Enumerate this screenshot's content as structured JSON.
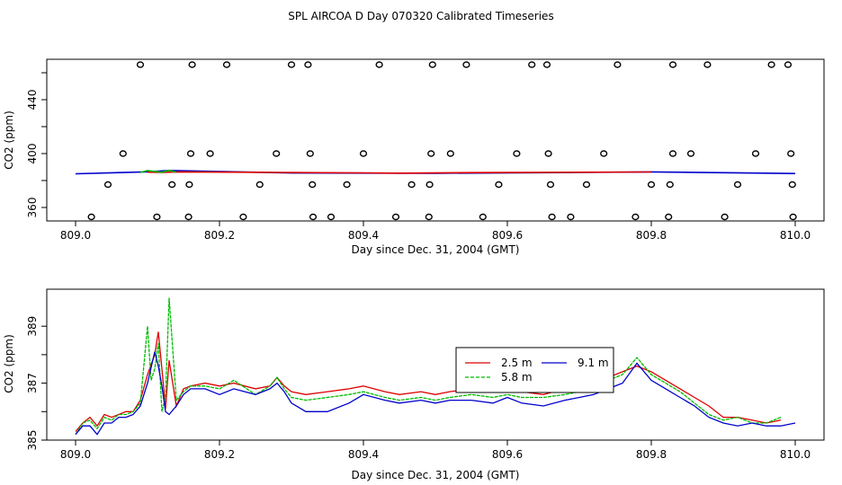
{
  "title": "SPL AIRCOA D  Day 070320  Calibrated Timeseries",
  "colors": {
    "red": "#dd0000",
    "green": "#00bb00",
    "blue": "#0000cc",
    "axis": "#000000"
  },
  "chart_data": [
    {
      "type": "scatter",
      "title": "",
      "xlabel": "Day since Dec. 31, 2004 (GMT)",
      "ylabel": "CO2 (ppm)",
      "xlim": [
        809.0,
        810.0
      ],
      "ylim": [
        350,
        470
      ],
      "x_ticks": [
        809.0,
        809.2,
        809.4,
        809.6,
        809.8,
        810.0
      ],
      "x_tick_labels": [
        "809.0",
        "809.2",
        "809.4",
        "809.6",
        "809.8",
        "810.0"
      ],
      "y_ticks": [
        360,
        380,
        400,
        420,
        440,
        460
      ],
      "y_tick_labels": [
        "360",
        "",
        "400",
        "",
        "440",
        ""
      ],
      "points": {
        "x": [
          809.09,
          809.162,
          809.21,
          809.3,
          809.323,
          809.422,
          809.496,
          809.543,
          809.634,
          809.655,
          809.753,
          809.83,
          809.878,
          809.967,
          809.99,
          809.066,
          809.16,
          809.187,
          809.279,
          809.326,
          809.4,
          809.494,
          809.521,
          809.613,
          809.657,
          809.734,
          809.83,
          809.855,
          809.945,
          809.994,
          809.045,
          809.134,
          809.158,
          809.256,
          809.329,
          809.377,
          809.467,
          809.492,
          809.588,
          809.66,
          809.71,
          809.8,
          809.826,
          809.92,
          809.996,
          809.022,
          809.113,
          809.157,
          809.233,
          809.33,
          809.355,
          809.445,
          809.491,
          809.566,
          809.662,
          809.688,
          809.778,
          809.824,
          809.902,
          809.997
        ],
        "y": [
          466,
          466,
          466,
          466,
          466,
          466,
          466,
          466,
          466,
          466,
          466,
          466,
          466,
          466,
          466,
          400,
          400,
          400,
          400,
          400,
          400,
          400,
          400,
          400,
          400,
          400,
          400,
          400,
          400,
          400,
          377,
          377,
          377,
          377,
          377,
          377,
          377,
          377,
          377,
          377,
          377,
          377,
          377,
          377,
          377,
          353,
          353,
          353,
          353,
          353,
          353,
          353,
          353,
          353,
          353,
          353,
          353,
          353,
          353,
          353
        ]
      },
      "lines": [
        {
          "name": "blue",
          "x": [
            809.0,
            809.1,
            809.13,
            809.3,
            809.5,
            809.7,
            809.8,
            810.0
          ],
          "y": [
            385.0,
            386.5,
            387.5,
            385.6,
            385.4,
            386.0,
            386.4,
            385.2
          ]
        },
        {
          "name": "red",
          "x": [
            809.1,
            809.12,
            809.14,
            809.4,
            809.45,
            809.55,
            809.8
          ],
          "y": [
            386.2,
            386.0,
            386.4,
            385.7,
            385.5,
            385.9,
            386.3
          ]
        },
        {
          "name": "green",
          "x": [
            809.09,
            809.1,
            809.12,
            809.13,
            809.14
          ],
          "y": [
            386.0,
            387.4,
            386.1,
            387.6,
            386.2
          ]
        }
      ]
    },
    {
      "type": "line",
      "title": "",
      "xlabel": "Day since Dec. 31, 2004 (GMT)",
      "ylabel": "CO2 (ppm)",
      "xlim": [
        809.0,
        810.0
      ],
      "ylim": [
        385.0,
        390.3
      ],
      "x_ticks": [
        809.0,
        809.2,
        809.4,
        809.6,
        809.8,
        810.0
      ],
      "x_tick_labels": [
        "809.0",
        "809.2",
        "809.4",
        "809.6",
        "809.8",
        "810.0"
      ],
      "y_ticks": [
        385,
        386,
        387,
        388,
        389
      ],
      "y_tick_labels": [
        "385",
        "",
        "387",
        "",
        "389"
      ],
      "legend": {
        "location": "center",
        "entries": [
          "2.5 m",
          "5.8 m",
          "9.1 m"
        ]
      },
      "series": [
        {
          "name": "2.5 m",
          "color": "red",
          "x": [
            809.0,
            809.01,
            809.02,
            809.03,
            809.04,
            809.05,
            809.06,
            809.07,
            809.08,
            809.09,
            809.1,
            809.11,
            809.115,
            809.12,
            809.125,
            809.13,
            809.14,
            809.15,
            809.16,
            809.18,
            809.2,
            809.22,
            809.25,
            809.27,
            809.28,
            809.29,
            809.3,
            809.32,
            809.35,
            809.38,
            809.4,
            809.43,
            809.45,
            809.48,
            809.5,
            809.52,
            809.55,
            809.58,
            809.6,
            809.62,
            809.65,
            809.68,
            809.7,
            809.72,
            809.74,
            809.76,
            809.78,
            809.8,
            809.82,
            809.84,
            809.86,
            809.88,
            809.9,
            809.92,
            809.94,
            809.96,
            809.98
          ],
          "y": [
            385.3,
            385.6,
            385.8,
            385.5,
            385.9,
            385.8,
            385.9,
            386.0,
            386.0,
            386.4,
            387.3,
            388.0,
            388.8,
            387.5,
            386.1,
            387.8,
            386.2,
            386.8,
            386.9,
            387.0,
            386.9,
            387.0,
            386.8,
            386.9,
            387.2,
            386.9,
            386.7,
            386.6,
            386.7,
            386.8,
            386.9,
            386.7,
            386.6,
            386.7,
            386.6,
            386.7,
            386.8,
            386.7,
            386.8,
            386.7,
            386.6,
            386.8,
            386.9,
            387.0,
            387.2,
            387.4,
            387.6,
            387.4,
            387.1,
            386.8,
            386.5,
            386.2,
            385.8,
            385.8,
            385.7,
            385.6,
            385.7
          ]
        },
        {
          "name": "5.8 m",
          "color": "green",
          "x": [
            809.0,
            809.01,
            809.02,
            809.03,
            809.04,
            809.05,
            809.06,
            809.07,
            809.08,
            809.09,
            809.1,
            809.105,
            809.11,
            809.115,
            809.12,
            809.125,
            809.13,
            809.14,
            809.15,
            809.16,
            809.18,
            809.2,
            809.22,
            809.25,
            809.27,
            809.28,
            809.29,
            809.3,
            809.32,
            809.35,
            809.38,
            809.4,
            809.43,
            809.45,
            809.48,
            809.5,
            809.52,
            809.55,
            809.58,
            809.6,
            809.62,
            809.65,
            809.68,
            809.7,
            809.72,
            809.74,
            809.76,
            809.78,
            809.8,
            809.82,
            809.84,
            809.86,
            809.88,
            809.9,
            809.92,
            809.94,
            809.96,
            809.98
          ],
          "y": [
            385.2,
            385.6,
            385.7,
            385.4,
            385.8,
            385.7,
            385.9,
            385.9,
            386.0,
            386.3,
            389.0,
            387.1,
            387.5,
            388.4,
            386.0,
            386.5,
            390.0,
            386.4,
            386.7,
            386.9,
            386.9,
            386.8,
            387.1,
            386.6,
            386.9,
            387.2,
            386.8,
            386.5,
            386.4,
            386.5,
            386.6,
            386.7,
            386.5,
            386.4,
            386.5,
            386.4,
            386.5,
            386.6,
            386.5,
            386.6,
            386.5,
            386.5,
            386.6,
            386.7,
            386.9,
            387.1,
            387.3,
            387.9,
            387.3,
            387.0,
            386.7,
            386.3,
            385.9,
            385.7,
            385.8,
            385.6,
            385.6,
            385.8
          ]
        },
        {
          "name": "9.1 m",
          "color": "blue",
          "x": [
            809.0,
            809.01,
            809.02,
            809.03,
            809.04,
            809.05,
            809.06,
            809.07,
            809.08,
            809.09,
            809.1,
            809.11,
            809.115,
            809.12,
            809.125,
            809.13,
            809.14,
            809.15,
            809.16,
            809.18,
            809.2,
            809.22,
            809.25,
            809.27,
            809.28,
            809.29,
            809.3,
            809.32,
            809.35,
            809.38,
            809.4,
            809.43,
            809.45,
            809.48,
            809.5,
            809.52,
            809.55,
            809.58,
            809.6,
            809.62,
            809.65,
            809.68,
            809.7,
            809.72,
            809.74,
            809.76,
            809.78,
            809.8,
            809.82,
            809.84,
            809.86,
            809.88,
            809.9,
            809.92,
            809.94,
            809.96,
            809.98,
            810.0
          ],
          "y": [
            385.2,
            385.5,
            385.5,
            385.2,
            385.6,
            385.6,
            385.8,
            385.8,
            385.9,
            386.2,
            387.0,
            388.1,
            387.6,
            386.9,
            386.0,
            385.9,
            386.2,
            386.6,
            386.8,
            386.8,
            386.6,
            386.8,
            386.6,
            386.8,
            387.0,
            386.7,
            386.3,
            386.0,
            386.0,
            386.3,
            386.6,
            386.4,
            386.3,
            386.4,
            386.3,
            386.4,
            386.4,
            386.3,
            386.5,
            386.3,
            386.2,
            386.4,
            386.5,
            386.6,
            386.8,
            387.0,
            387.7,
            387.1,
            386.8,
            386.5,
            386.2,
            385.8,
            385.6,
            385.5,
            385.6,
            385.5,
            385.5,
            385.6
          ]
        }
      ]
    }
  ]
}
